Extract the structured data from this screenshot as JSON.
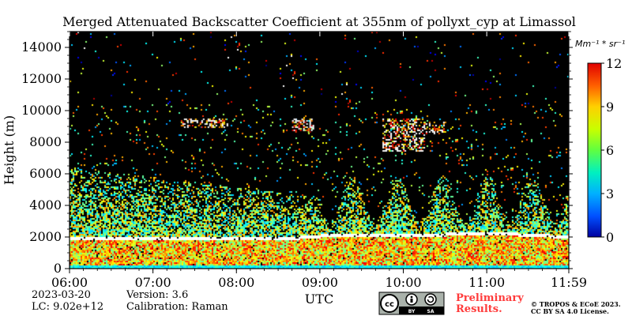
{
  "chart_data": {
    "type": "heatmap",
    "title": "Merged Attenuated Backscatter Coefficient at 355nm of pollyxt_cyp at Limassol",
    "xlabel": "UTC",
    "ylabel": "Height (m)",
    "x_range": [
      "06:00",
      "11:59"
    ],
    "x_ticks": [
      "06:00",
      "07:00",
      "08:00",
      "09:00",
      "10:00",
      "11:00",
      "11:59"
    ],
    "ylim": [
      0,
      15000
    ],
    "y_ticks": [
      0,
      2000,
      4000,
      6000,
      8000,
      10000,
      12000,
      14000
    ],
    "colorbar": {
      "unit": "Mm⁻¹ * sr⁻¹",
      "range": [
        0,
        12
      ],
      "ticks": [
        0,
        3,
        6,
        9,
        12
      ],
      "colormap": "jet"
    },
    "background_color": "#000000",
    "features": {
      "boundary_layer_top_m": [
        {
          "t": "06:00",
          "h": 1900
        },
        {
          "t": "08:45",
          "h": 1900
        },
        {
          "t": "09:15",
          "h": 2100
        },
        {
          "t": "10:00",
          "h": 2000
        },
        {
          "t": "11:00",
          "h": 2200
        },
        {
          "t": "11:45",
          "h": 2000
        }
      ],
      "high_cloud_layers": [
        {
          "start": "07:20",
          "end": "07:55",
          "base_m": 8900,
          "top_m": 9500
        },
        {
          "start": "08:40",
          "end": "08:55",
          "base_m": 8600,
          "top_m": 9500
        },
        {
          "start": "09:45",
          "end": "10:15",
          "base_m": 7400,
          "top_m": 9500
        },
        {
          "start": "10:15",
          "end": "10:30",
          "base_m": 8500,
          "top_m": 9300
        }
      ],
      "aerosol_layer_top_m": 6500,
      "aerosol_layer_end": "09:00"
    }
  },
  "footer": {
    "date": "2023-03-20",
    "lc": "LC: 9.02e+12",
    "version": "Version: 3.6",
    "calibration": "Calibration: Raman",
    "license_badge": {
      "cc": "cc",
      "by": "BY",
      "sa": "SA"
    },
    "preliminary_line1": "Preliminary",
    "preliminary_line2": "Results.",
    "copyright_line1": "© TROPOS & ECoE 2023.",
    "copyright_line2": "CC BY SA 4.0 License."
  }
}
